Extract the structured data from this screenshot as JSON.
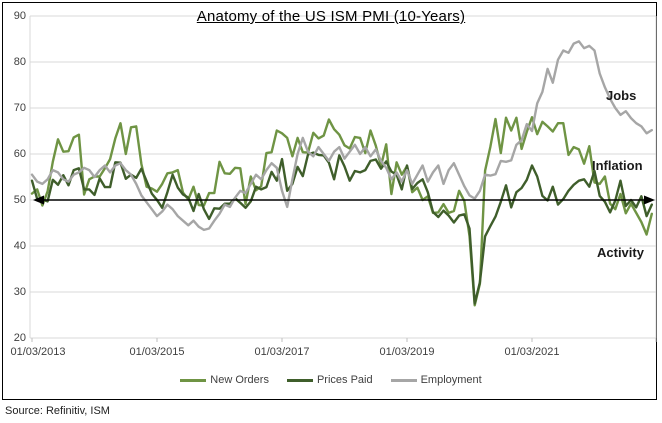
{
  "title": "Anatomy of the US ISM PMI (10-Years)",
  "source": "Source: Refinitiv, ISM",
  "chart_data": {
    "type": "line",
    "title": "Anatomy of the US ISM PMI (10-Years)",
    "xlabel": "",
    "ylabel": "",
    "ylim": [
      20,
      90
    ],
    "grid": "horizontal",
    "legend_position": "bottom",
    "frequency": "monthly",
    "x_range": [
      "01/03/2013",
      "01/02/2023"
    ],
    "y_ticks": [
      90,
      80,
      70,
      60,
      50,
      40,
      30,
      20
    ],
    "x_ticks": [
      {
        "label": "01/03/2013",
        "month_index": 0
      },
      {
        "label": "01/03/2015",
        "month_index": 24
      },
      {
        "label": "01/03/2017",
        "month_index": 48
      },
      {
        "label": "01/03/2019",
        "month_index": 72
      },
      {
        "label": "01/03/2021",
        "month_index": 96
      }
    ],
    "reference_line": {
      "value": 50,
      "color": "#000000",
      "style": "double-arrow"
    },
    "annotations": [
      {
        "text": "Jobs",
        "series": "Employment"
      },
      {
        "text": "Inflation",
        "series": "Prices Paid"
      },
      {
        "text": "Activity",
        "series": "New Orders"
      }
    ],
    "series": [
      {
        "name": "New Orders",
        "color": "#6f9444",
        "values": [
          51.4,
          52.3,
          48.8,
          51.9,
          58.3,
          63.2,
          60.5,
          60.6,
          63.6,
          64.2,
          51.2,
          54.5,
          55.1,
          55.1,
          56.9,
          58.9,
          63.4,
          66.7,
          60.0,
          65.8,
          66.0,
          57.8,
          52.9,
          52.5,
          51.8,
          53.5,
          55.8,
          56.0,
          56.5,
          51.6,
          50.1,
          52.9,
          48.9,
          48.8,
          51.5,
          51.5,
          58.3,
          55.8,
          55.7,
          57.0,
          56.9,
          49.1,
          55.1,
          52.1,
          53.0,
          60.2,
          60.4,
          65.1,
          64.5,
          63.5,
          59.5,
          63.5,
          60.4,
          60.3,
          64.6,
          63.4,
          64.0,
          67.5,
          65.4,
          64.2,
          61.9,
          61.2,
          63.7,
          63.5,
          60.2,
          65.1,
          61.8,
          57.4,
          62.1,
          51.3,
          58.2,
          55.5,
          57.4,
          51.7,
          52.7,
          50.0,
          50.8,
          47.2,
          47.3,
          49.1,
          47.2,
          47.6,
          52.0,
          49.8,
          42.2,
          27.1,
          31.8,
          56.4,
          61.5,
          67.6,
          60.2,
          67.9,
          65.1,
          67.9,
          61.1,
          64.8,
          68.0,
          64.3,
          67.0,
          66.0,
          64.9,
          66.7,
          66.7,
          59.8,
          61.5,
          61.0,
          57.9,
          61.7,
          53.8,
          53.5,
          55.1,
          49.2,
          48.0,
          51.3,
          47.1,
          49.2,
          47.2,
          45.2,
          42.5,
          47.0
        ]
      },
      {
        "name": "Prices Paid",
        "color": "#3f5e2b",
        "values": [
          54.2,
          50.2,
          50.1,
          49.7,
          54.4,
          53.3,
          55.4,
          53.2,
          56.5,
          56.9,
          52.3,
          52.3,
          51.1,
          54.7,
          52.8,
          52.8,
          58.2,
          58.1,
          54.6,
          55.5,
          54.8,
          56.8,
          54.1,
          51.4,
          50.0,
          48.3,
          51.7,
          55.5,
          52.7,
          51.2,
          50.5,
          47.6,
          51.3,
          48.0,
          45.9,
          48.2,
          48.1,
          49.2,
          49.2,
          50.4,
          49.4,
          48.3,
          49.7,
          52.9,
          52.3,
          52.8,
          56.1,
          54.2,
          58.9,
          52.0,
          53.5,
          57.2,
          55.2,
          59.9,
          60.3,
          59.8,
          59.7,
          58.1,
          54.5,
          59.7,
          57.3,
          54.2,
          56.3,
          56.0,
          56.5,
          58.5,
          58.8,
          56.8,
          58.4,
          56.2,
          55.5,
          52.3,
          57.5,
          52.4,
          53.7,
          54.5,
          51.7,
          47.4,
          46.3,
          47.7,
          46.6,
          45.1,
          46.6,
          46.9,
          43.8,
          27.5,
          32.1,
          42.1,
          44.3,
          46.4,
          49.6,
          53.2,
          48.4,
          51.7,
          52.6,
          54.4,
          57.5,
          55.1,
          50.9,
          49.9,
          52.9,
          49.0,
          50.2,
          52.0,
          53.3,
          54.2,
          54.5,
          52.9,
          56.3,
          50.9,
          49.6,
          47.3,
          49.9,
          54.2,
          48.7,
          50.0,
          48.4,
          50.8,
          46.5,
          49.0
        ]
      },
      {
        "name": "Employment",
        "color": "#a6a6a6",
        "values": [
          55.5,
          54.0,
          53.5,
          54.5,
          56.5,
          56.0,
          54.5,
          54.0,
          55.5,
          56.0,
          57.0,
          56.5,
          55.0,
          56.5,
          57.5,
          56.0,
          57.5,
          58.0,
          56.5,
          55.5,
          53.5,
          51.0,
          49.5,
          48.0,
          46.5,
          47.5,
          49.0,
          48.0,
          46.5,
          45.5,
          44.5,
          45.5,
          44.2,
          43.5,
          43.8,
          45.5,
          47.0,
          49.0,
          48.5,
          50.5,
          52.0,
          51.5,
          53.5,
          55.5,
          54.5,
          56.5,
          58.0,
          57.0,
          52.0,
          48.5,
          54.5,
          60.0,
          63.5,
          60.5,
          59.5,
          61.5,
          60.0,
          58.5,
          60.5,
          61.5,
          59.0,
          60.5,
          62.0,
          60.0,
          61.5,
          59.5,
          61.0,
          58.5,
          57.0,
          54.5,
          56.0,
          54.0,
          56.5,
          53.5,
          55.5,
          57.5,
          54.0,
          56.0,
          57.5,
          53.5,
          56.5,
          58.0,
          55.5,
          53.0,
          51.0,
          50.3,
          52.0,
          55.5,
          55.3,
          55.6,
          58.5,
          58.3,
          58.6,
          62.0,
          63.0,
          66.5,
          65.0,
          71.0,
          73.5,
          78.5,
          75.5,
          80.5,
          82.5,
          82.0,
          84.0,
          84.5,
          83.0,
          83.5,
          82.5,
          77.5,
          74.5,
          72.0,
          70.0,
          68.5,
          69.3,
          67.8,
          66.7,
          66.0,
          64.5,
          65.2
        ]
      }
    ]
  }
}
